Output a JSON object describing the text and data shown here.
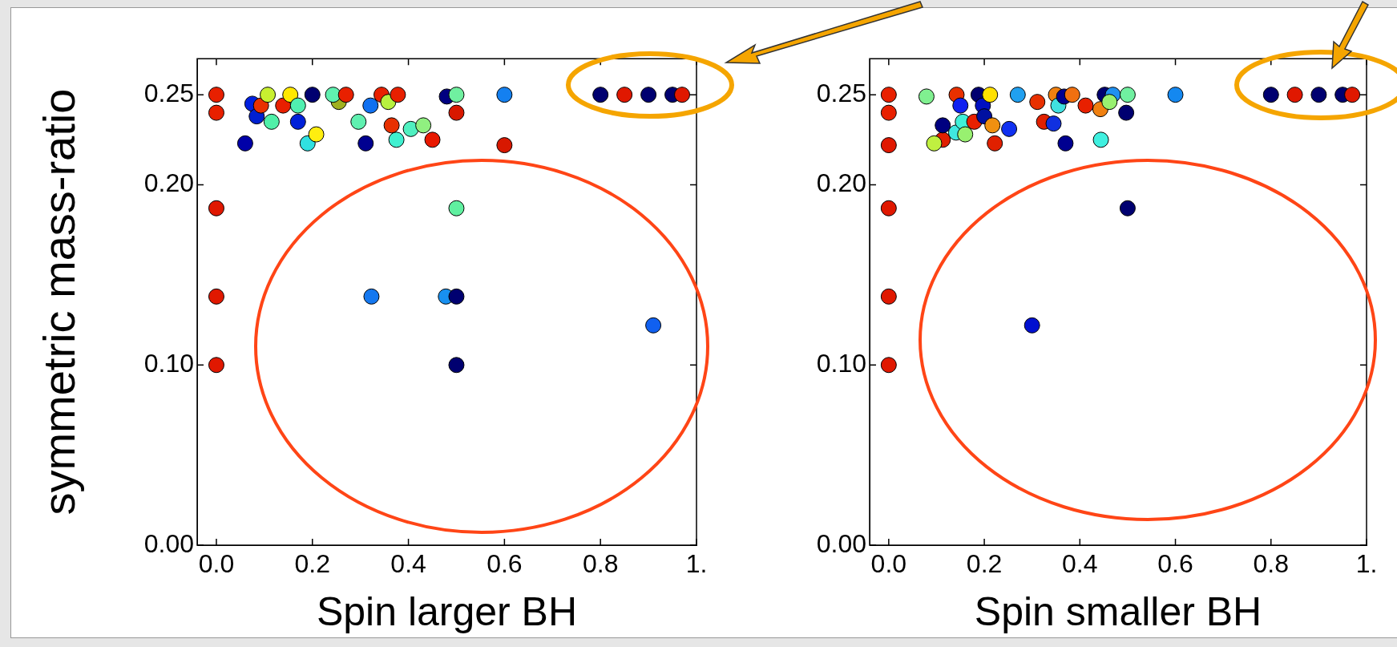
{
  "chart_data": [
    {
      "type": "scatter",
      "xlabel": "Spin larger BH",
      "ylabel": "symmetric mass-ratio",
      "marker": "circle",
      "xlim": [
        -0.04,
        1.0
      ],
      "ylim": [
        0,
        0.27
      ],
      "xticks": [
        {
          "value": 0,
          "label": "0.0"
        },
        {
          "value": 0.2,
          "label": "0.2"
        },
        {
          "value": 0.4,
          "label": "0.4"
        },
        {
          "value": 0.6,
          "label": "0.6"
        },
        {
          "value": 0.8,
          "label": "0.8"
        },
        {
          "value": 1,
          "label": "1."
        }
      ],
      "yticks": [
        {
          "value": 0,
          "label": "0.00"
        },
        {
          "value": 0.1,
          "label": "0.10"
        },
        {
          "value": 0.2,
          "label": "0.20"
        },
        0.25
      ],
      "x": [
        0.0,
        0.0,
        0.06,
        0.075,
        0.084,
        0.093,
        0.107,
        0.115,
        0.139,
        0.154,
        0.17,
        0.17,
        0.19,
        0.208,
        0.2,
        0.255,
        0.243,
        0.27,
        0.296,
        0.311,
        0.321,
        0.344,
        0.358,
        0.378,
        0.365,
        0.375,
        0.405,
        0.431,
        0.45,
        0.48,
        0.5,
        0.5,
        0.6,
        0.6,
        0.8,
        0.85,
        0.9,
        0.95,
        0.97,
        0.0,
        0.0,
        0.0,
        0.5,
        0.323,
        0.478,
        0.5,
        0.5,
        0.91
      ],
      "values": [
        0.25,
        0.24,
        0.223,
        0.245,
        0.238,
        0.244,
        0.25,
        0.235,
        0.244,
        0.25,
        0.244,
        0.235,
        0.223,
        0.228,
        0.25,
        0.246,
        0.25,
        0.25,
        0.235,
        0.223,
        0.244,
        0.25,
        0.246,
        0.25,
        0.233,
        0.225,
        0.231,
        0.233,
        0.225,
        0.249,
        0.25,
        0.24,
        0.25,
        0.222,
        0.25,
        0.25,
        0.25,
        0.25,
        0.25,
        0.187,
        0.138,
        0.1,
        0.187,
        0.138,
        0.138,
        0.138,
        0.1,
        0.122
      ],
      "colors": [
        "#e82000",
        "#e82000",
        "#0000a8",
        "#0020e0",
        "#0020d0",
        "#e83000",
        "#c8f030",
        "#50f0a8",
        "#e82000",
        "#ffe800",
        "#50f0b0",
        "#0020d8",
        "#30e0e0",
        "#ffee10",
        "#000070",
        "#a0b020",
        "#60f0b0",
        "#e82000",
        "#60f0b0",
        "#000090",
        "#1070f0",
        "#e82000",
        "#b8f040",
        "#e82000",
        "#e83000",
        "#40f0d0",
        "#50f0c0",
        "#90f080",
        "#e81800",
        "#000080",
        "#70f0a0",
        "#d81800",
        "#1480f0",
        "#d81800",
        "#000070",
        "#e01800",
        "#000070",
        "#000070",
        "#e01800",
        "#e01800",
        "#e01800",
        "#e01800",
        "#60f0a0",
        "#1478f0",
        "#1890f0",
        "#000070",
        "#000070",
        "#1060f0"
      ]
    },
    {
      "type": "scatter",
      "xlabel": "Spin smaller BH",
      "marker": "circle",
      "xlim": [
        -0.04,
        1.0
      ],
      "ylim": [
        0,
        0.27
      ],
      "xticks": [
        {
          "value": 0,
          "label": "0.0"
        },
        {
          "value": 0.2,
          "label": "0.2"
        },
        {
          "value": 0.4,
          "label": "0.4"
        },
        {
          "value": 0.6,
          "label": "0.6"
        },
        {
          "value": 0.8,
          "label": "0.8"
        },
        {
          "value": 1,
          "label": "1."
        }
      ],
      "yticks": [
        {
          "value": 0,
          "label": "0.00"
        },
        {
          "value": 0.1,
          "label": "0.10"
        },
        {
          "value": 0.2,
          "label": "0.20"
        },
        0.25
      ],
      "x": [
        0.0,
        0.0,
        0.0,
        0.079,
        0.113,
        0.095,
        0.113,
        0.142,
        0.141,
        0.155,
        0.16,
        0.15,
        0.179,
        0.188,
        0.197,
        0.2,
        0.212,
        0.217,
        0.222,
        0.252,
        0.27,
        0.311,
        0.325,
        0.345,
        0.35,
        0.355,
        0.367,
        0.384,
        0.37,
        0.412,
        0.444,
        0.443,
        0.452,
        0.469,
        0.462,
        0.5,
        0.497,
        0.6,
        0.8,
        0.85,
        0.9,
        0.95,
        0.97,
        0.0,
        0.0,
        0.0,
        0.5,
        0.3
      ],
      "values": [
        0.25,
        0.24,
        0.222,
        0.249,
        0.225,
        0.223,
        0.233,
        0.25,
        0.229,
        0.235,
        0.228,
        0.244,
        0.235,
        0.25,
        0.244,
        0.238,
        0.25,
        0.233,
        0.223,
        0.231,
        0.25,
        0.246,
        0.235,
        0.234,
        0.25,
        0.244,
        0.249,
        0.25,
        0.223,
        0.244,
        0.225,
        0.242,
        0.25,
        0.25,
        0.246,
        0.25,
        0.24,
        0.25,
        0.25,
        0.25,
        0.25,
        0.25,
        0.25,
        0.187,
        0.138,
        0.1,
        0.187,
        0.122
      ],
      "colors": [
        "#e82000",
        "#e82000",
        "#e01800",
        "#80f090",
        "#e02000",
        "#c0f040",
        "#000080",
        "#e83000",
        "#40e8e0",
        "#40f0d8",
        "#98f070",
        "#1020f0",
        "#e82000",
        "#000070",
        "#0010c0",
        "#0010a0",
        "#ffe000",
        "#f09010",
        "#e02000",
        "#1030f0",
        "#20a0f0",
        "#e83000",
        "#e02000",
        "#1030e0",
        "#f08010",
        "#40e0e0",
        "#000090",
        "#f07010",
        "#000090",
        "#e82000",
        "#40f0e0",
        "#f08010",
        "#000070",
        "#2090f0",
        "#98f070",
        "#70f0a0",
        "#000070",
        "#1488f0",
        "#000070",
        "#e01800",
        "#000070",
        "#000070",
        "#e01800",
        "#e01800",
        "#e01800",
        "#e01800",
        "#000070",
        "#0010d0"
      ]
    }
  ]
}
